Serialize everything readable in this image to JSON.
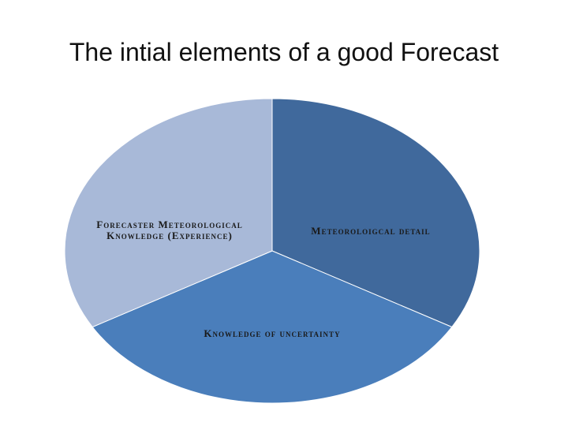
{
  "chart_data": {
    "type": "pie",
    "title": "The intial elements of a good Forecast",
    "categories": [
      "Meteoroloigcal detail",
      "Knowledge of uncertainty",
      "Forecaster Meteorological Knowledge (Experience)"
    ],
    "values": [
      33.3,
      33.3,
      33.3
    ],
    "colors": [
      "#40699c",
      "#4a7ebb",
      "#a8b9d8"
    ]
  }
}
